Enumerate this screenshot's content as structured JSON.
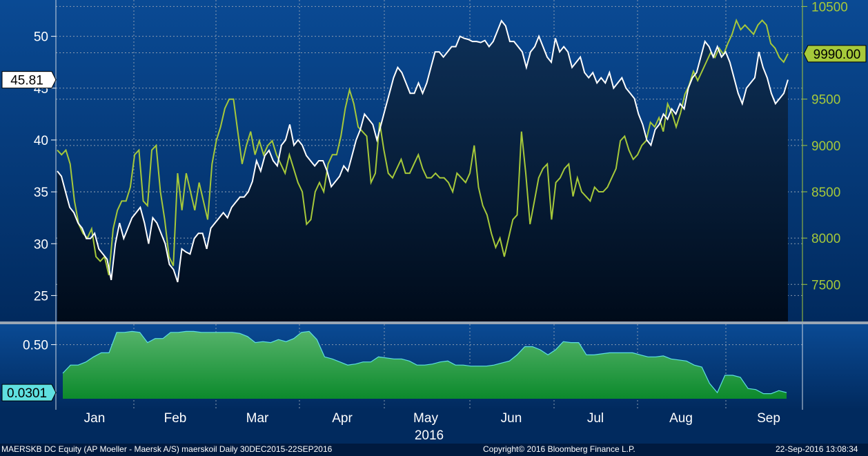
{
  "footer": {
    "left": "MAERSKB DC Equity (AP Moeller - Maersk A/S) maerskoil  Daily 30DEC2015-22SEP2016",
    "center": "Copyright© 2016 Bloomberg Finance L.P.",
    "right": "22-Sep-2016 13:08:34"
  },
  "colors": {
    "background": "#001a3f",
    "maersk_line": "#ffffff",
    "oil_line": "#a6c93a",
    "correlation_fill": "#1f9a3a",
    "correlation_edge": "#5fe0e0",
    "grid": "#8a9bb0"
  },
  "chart_data": [
    {
      "type": "line",
      "x_labels": [
        "Jan",
        "Feb",
        "Mar",
        "Apr",
        "May",
        "Jun",
        "Jul",
        "Aug",
        "Sep"
      ],
      "year_label": "2016",
      "left_axis": {
        "ticks": [
          25,
          30,
          35,
          40,
          45,
          50
        ],
        "ylim": [
          22.5,
          53.5
        ]
      },
      "right_axis": {
        "ticks": [
          7500,
          8000,
          8500,
          9000,
          9500,
          10000,
          10500
        ],
        "ylim": [
          7100,
          10570
        ]
      },
      "series": [
        {
          "axis": "left",
          "last_value_label": "45.81",
          "values": [
            37.0,
            36.5,
            35.0,
            33.5,
            33.0,
            32.0,
            31.5,
            30.5,
            30.5,
            31.0,
            29.5,
            29.0,
            28.5,
            26.5,
            30.0,
            32.0,
            30.5,
            31.5,
            32.5,
            33.0,
            33.5,
            32.0,
            30.0,
            32.5,
            32.0,
            31.0,
            30.0,
            28.0,
            27.5,
            26.3,
            29.5,
            29.2,
            29.0,
            30.5,
            31.0,
            31.0,
            29.5,
            31.5,
            32.0,
            32.5,
            33.0,
            32.5,
            33.5,
            34.0,
            34.5,
            34.5,
            35.0,
            36.0,
            38.0,
            37.0,
            38.5,
            39.0,
            38.0,
            37.5,
            39.5,
            40.0,
            41.5,
            39.5,
            40.0,
            39.5,
            38.5,
            38.0,
            37.5,
            38.0,
            38.0,
            37.0,
            35.5,
            36.0,
            36.5,
            37.5,
            37.0,
            38.5,
            40.0,
            41.0,
            42.5,
            42.0,
            41.5,
            40.0,
            41.5,
            43.0,
            44.5,
            46.0,
            47.0,
            46.5,
            45.5,
            44.5,
            44.5,
            45.5,
            44.5,
            45.5,
            47.0,
            48.5,
            48.5,
            48.0,
            48.5,
            49.0,
            49.0,
            50.0,
            49.8,
            49.7,
            49.5,
            49.5,
            49.4,
            49.6,
            49.0,
            49.5,
            50.5,
            51.5,
            51.0,
            49.5,
            49.5,
            49.0,
            48.5,
            47.0,
            48.5,
            49.0,
            50.0,
            49.0,
            48.0,
            47.5,
            49.8,
            48.5,
            49.0,
            48.5,
            47.0,
            47.5,
            48.0,
            46.5,
            46.0,
            46.5,
            45.5,
            46.0,
            45.5,
            46.5,
            45.0,
            45.5,
            46.0,
            45.0,
            44.5,
            44.0,
            42.5,
            41.5,
            40.0,
            39.5,
            41.0,
            41.5,
            42.5,
            42.0,
            43.0,
            42.5,
            43.5,
            43.0,
            45.0,
            46.0,
            46.5,
            48.0,
            49.5,
            49.0,
            48.0,
            49.0,
            48.0,
            48.5,
            47.5,
            46.0,
            44.5,
            43.5,
            45.0,
            45.5,
            46.0,
            48.5,
            47.0,
            46.0,
            44.5,
            43.5,
            44.0,
            44.5,
            45.81
          ]
        },
        {
          "axis": "right",
          "last_value_label": "9990.00",
          "values": [
            8950,
            8900,
            8950,
            8800,
            8400,
            8150,
            8050,
            8000,
            8100,
            7800,
            7750,
            7800,
            7600,
            8100,
            8300,
            8400,
            8400,
            8550,
            8900,
            8950,
            8400,
            8350,
            8950,
            9000,
            8500,
            8200,
            7800,
            7700,
            8700,
            8300,
            8700,
            8500,
            8300,
            8600,
            8400,
            8200,
            8800,
            9050,
            9200,
            9400,
            9500,
            9500,
            9150,
            8800,
            9000,
            9150,
            8900,
            9050,
            8900,
            9000,
            9050,
            8900,
            8800,
            8700,
            8900,
            8750,
            8600,
            8500,
            8150,
            8200,
            8500,
            8600,
            8500,
            8800,
            8900,
            8900,
            9100,
            9400,
            9600,
            9450,
            9200,
            9150,
            9100,
            8600,
            8700,
            9250,
            8950,
            8700,
            8650,
            8750,
            8850,
            8700,
            8700,
            8800,
            8900,
            8750,
            8650,
            8650,
            8700,
            8650,
            8650,
            8600,
            8500,
            8700,
            8650,
            8600,
            8700,
            9000,
            8550,
            8350,
            8250,
            8050,
            7900,
            8000,
            7800,
            8000,
            8200,
            8250,
            9150,
            8700,
            8150,
            8400,
            8650,
            8750,
            8800,
            8200,
            8600,
            8650,
            8750,
            8800,
            8450,
            8650,
            8500,
            8450,
            8400,
            8550,
            8500,
            8500,
            8550,
            8650,
            8750,
            9050,
            9100,
            8950,
            8850,
            8900,
            9000,
            9050,
            9250,
            9200,
            9300,
            9150,
            9450,
            9350,
            9200,
            9350,
            9550,
            9650,
            9800,
            9700,
            9800,
            9900,
            10000,
            9950,
            10050,
            9980,
            10100,
            10200,
            10350,
            10250,
            10300,
            10250,
            10200,
            10300,
            10350,
            10300,
            10100,
            10050,
            9950,
            9900,
            9990
          ]
        }
      ]
    },
    {
      "type": "area",
      "x_labels": [
        "Jan",
        "Feb",
        "Mar",
        "Apr",
        "May",
        "Jun",
        "Jul",
        "Aug",
        "Sep"
      ],
      "axis": {
        "ticks": [
          0.5
        ],
        "ylim": [
          -0.03,
          0.7
        ]
      },
      "series": [
        {
          "last_value_label": "0.0301",
          "values": [
            0.22,
            0.3,
            0.3,
            0.33,
            0.38,
            0.42,
            0.42,
            0.62,
            0.62,
            0.63,
            0.62,
            0.52,
            0.56,
            0.56,
            0.62,
            0.62,
            0.63,
            0.63,
            0.62,
            0.62,
            0.62,
            0.62,
            0.62,
            0.61,
            0.58,
            0.52,
            0.53,
            0.52,
            0.55,
            0.53,
            0.56,
            0.62,
            0.63,
            0.55,
            0.38,
            0.36,
            0.33,
            0.3,
            0.31,
            0.33,
            0.33,
            0.38,
            0.37,
            0.36,
            0.36,
            0.34,
            0.3,
            0.3,
            0.31,
            0.33,
            0.34,
            0.3,
            0.3,
            0.29,
            0.29,
            0.29,
            0.3,
            0.32,
            0.34,
            0.4,
            0.48,
            0.48,
            0.45,
            0.4,
            0.45,
            0.53,
            0.52,
            0.52,
            0.4,
            0.4,
            0.41,
            0.42,
            0.42,
            0.42,
            0.42,
            0.4,
            0.38,
            0.38,
            0.39,
            0.36,
            0.35,
            0.34,
            0.3,
            0.28,
            0.12,
            0.03,
            0.2,
            0.2,
            0.18,
            0.07,
            0.06,
            0.02,
            0.02,
            0.05,
            0.0301
          ]
        }
      ]
    }
  ]
}
